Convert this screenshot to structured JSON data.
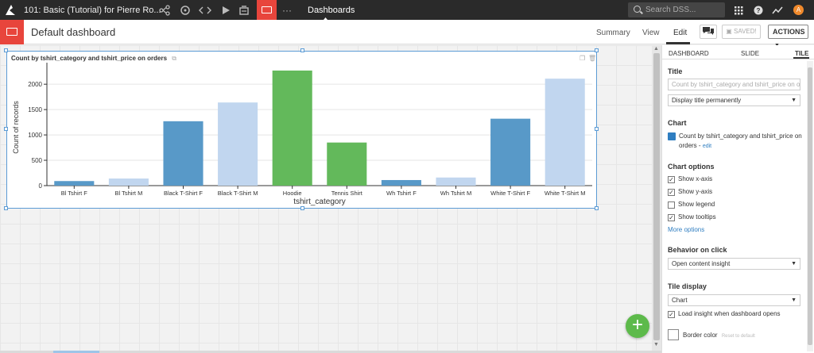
{
  "topbar": {
    "project_title": "101: Basic (Tutorial) for Pierre Ro...",
    "breadcrumb": "Dashboards",
    "search_placeholder": "Search DSS...",
    "more_label": "···",
    "user_initial": "A"
  },
  "header": {
    "title": "Default dashboard",
    "nav": [
      "Summary",
      "View",
      "Edit"
    ],
    "active_nav": "Edit",
    "saved_label": "SAVED!",
    "actions_label": "ACTIONS"
  },
  "tile": {
    "title": "Count by tshirt_category and tshirt_price on orders"
  },
  "chart_data": {
    "type": "bar",
    "title": "Count by tshirt_category and tshirt_price on orders",
    "xlabel": "tshirt_category",
    "ylabel": "Count of records",
    "ylim": [
      0,
      2300
    ],
    "yticks": [
      0,
      500,
      1000,
      1500,
      2000
    ],
    "grid": true,
    "legend": "none",
    "categories": [
      "Bl Tshirt F",
      "Bl Tshirt M",
      "Black T-Shirt F",
      "Black T-Shirt M",
      "Hoodie",
      "Tennis Shirt",
      "Wh Tshirt F",
      "Wh Tshirt M",
      "White T-Shirt F",
      "White T-Shirt M"
    ],
    "values": [
      90,
      140,
      1270,
      1640,
      2270,
      850,
      110,
      160,
      1320,
      2110
    ],
    "colors": [
      "#5899c8",
      "#c1d6ef",
      "#5899c8",
      "#c1d6ef",
      "#63b95b",
      "#63b95b",
      "#5899c8",
      "#c1d6ef",
      "#5899c8",
      "#c1d6ef"
    ]
  },
  "panel": {
    "tabs": [
      "DASHBOARD",
      "SLIDE",
      "TILE"
    ],
    "active_tab": "TILE",
    "title_section": "Title",
    "title_placeholder": "Count by tshirt_category and tshirt_price on orders",
    "title_display": "Display title permanently",
    "chart_section": "Chart",
    "chart_ref": "Count by tshirt_category and tshirt_price on orders",
    "chart_ref_edit": "edit",
    "chart_options_section": "Chart options",
    "options": [
      {
        "label": "Show x-axis",
        "checked": true
      },
      {
        "label": "Show y-axis",
        "checked": true
      },
      {
        "label": "Show legend",
        "checked": false
      },
      {
        "label": "Show tooltips",
        "checked": true
      }
    ],
    "more_options": "More options",
    "behavior_section": "Behavior on click",
    "behavior_value": "Open content insight",
    "tile_display_section": "Tile display",
    "tile_display_value": "Chart",
    "load_insight": {
      "label": "Load insight when dashboard opens",
      "checked": true
    },
    "border_color_label": "Border color",
    "border_reset": "Reset to default"
  },
  "colors": {
    "accent_red": "#e8453c",
    "add_button_green": "#5dba4b",
    "link_blue": "#2f7ec1"
  }
}
